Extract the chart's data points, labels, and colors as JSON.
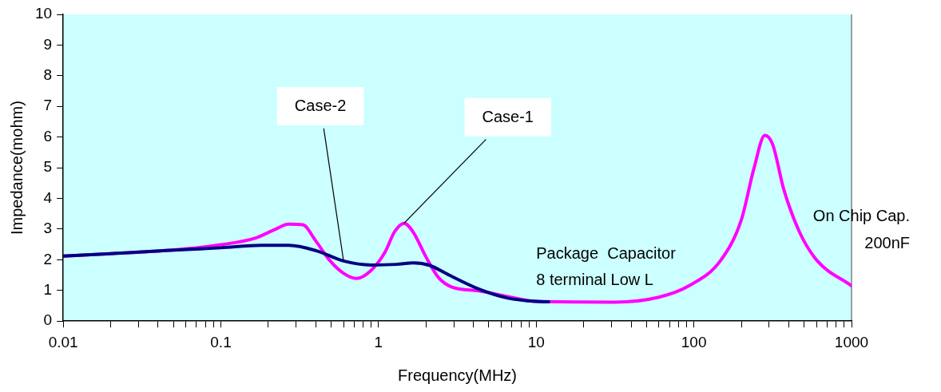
{
  "chart_data": {
    "type": "line",
    "xlabel": "Frequency(MHz)",
    "ylabel": "Impedance(mohm)",
    "log": "x",
    "grid": false,
    "legend": false,
    "marker": "none",
    "line_style": "solid",
    "xlim": [
      0.01,
      1000
    ],
    "ylim": [
      0,
      10
    ],
    "xticks": [
      0.01,
      {
        "value": 0.02,
        "label": null
      },
      {
        "value": 0.03,
        "label": null
      },
      {
        "value": 0.04,
        "label": null
      },
      {
        "value": 0.05,
        "label": null
      },
      {
        "value": 0.06,
        "label": null
      },
      {
        "value": 0.07,
        "label": null
      },
      {
        "value": 0.08,
        "label": null
      },
      {
        "value": 0.09,
        "label": null
      },
      0.1,
      {
        "value": 0.2,
        "label": null
      },
      {
        "value": 0.3,
        "label": null
      },
      {
        "value": 0.4,
        "label": null
      },
      {
        "value": 0.5,
        "label": null
      },
      {
        "value": 0.6,
        "label": null
      },
      {
        "value": 0.7,
        "label": null
      },
      {
        "value": 0.8,
        "label": null
      },
      {
        "value": 0.9,
        "label": null
      },
      1,
      {
        "value": 2,
        "label": null
      },
      {
        "value": 3,
        "label": null
      },
      {
        "value": 4,
        "label": null
      },
      {
        "value": 5,
        "label": null
      },
      {
        "value": 6,
        "label": null
      },
      {
        "value": 7,
        "label": null
      },
      {
        "value": 8,
        "label": null
      },
      {
        "value": 9,
        "label": null
      },
      10,
      {
        "value": 20,
        "label": null
      },
      {
        "value": 30,
        "label": null
      },
      {
        "value": 40,
        "label": null
      },
      {
        "value": 50,
        "label": null
      },
      {
        "value": 60,
        "label": null
      },
      {
        "value": 70,
        "label": null
      },
      {
        "value": 80,
        "label": null
      },
      {
        "value": 90,
        "label": null
      },
      100,
      {
        "value": 200,
        "label": null
      },
      {
        "value": 300,
        "label": null
      },
      {
        "value": 400,
        "label": null
      },
      {
        "value": 500,
        "label": null
      },
      {
        "value": 600,
        "label": null
      },
      {
        "value": 700,
        "label": null
      },
      {
        "value": 800,
        "label": null
      },
      {
        "value": 900,
        "label": null
      },
      1000
    ],
    "yticks": [
      0,
      1,
      2,
      3,
      4,
      5,
      6,
      7,
      8,
      9,
      10
    ],
    "series": [
      {
        "color": "#000080",
        "x": [
          0.01,
          0.02,
          0.045,
          0.1,
          0.18,
          0.27,
          0.4,
          0.6,
          0.9,
          1.3,
          1.66,
          2.1,
          2.8,
          4.3,
          6.6,
          10,
          12
        ],
        "values": [
          2.12,
          2.2,
          2.3,
          2.39,
          2.47,
          2.47,
          2.3,
          1.96,
          1.83,
          1.85,
          1.9,
          1.82,
          1.5,
          1.05,
          0.75,
          0.64,
          0.63
        ]
      },
      {
        "color": "#ff00ff",
        "x": [
          0.01,
          0.02,
          0.045,
          0.1,
          0.166,
          0.219,
          0.269,
          0.331,
          0.398,
          0.49,
          0.603,
          0.724,
          0.891,
          1.1,
          1.26,
          1.45,
          1.66,
          2,
          2.4,
          2.95,
          4.3,
          6.6,
          10,
          31.6,
          60,
          93,
          148,
          200,
          240,
          282,
          316,
          372,
          468,
          603,
          1000
        ],
        "values": [
          2.12,
          2.2,
          2.3,
          2.49,
          2.71,
          2.98,
          3.16,
          3.14,
          2.63,
          1.98,
          1.55,
          1.39,
          1.64,
          2.25,
          2.9,
          3.19,
          2.9,
          2.09,
          1.42,
          1.1,
          0.99,
          0.8,
          0.64,
          0.62,
          0.78,
          1.15,
          1.98,
          3.3,
          4.96,
          6.06,
          5.76,
          4.29,
          2.9,
          1.98,
          1.15
        ]
      }
    ],
    "annotations": [
      {
        "text": "Case-2",
        "x": 0.6,
        "y": 1.96
      },
      {
        "text": "Case-1",
        "x": 1.45,
        "y": 3.19
      },
      "Package  Capacitor\n8 terminal Low L",
      "On Chip Cap.\n200nF"
    ]
  }
}
